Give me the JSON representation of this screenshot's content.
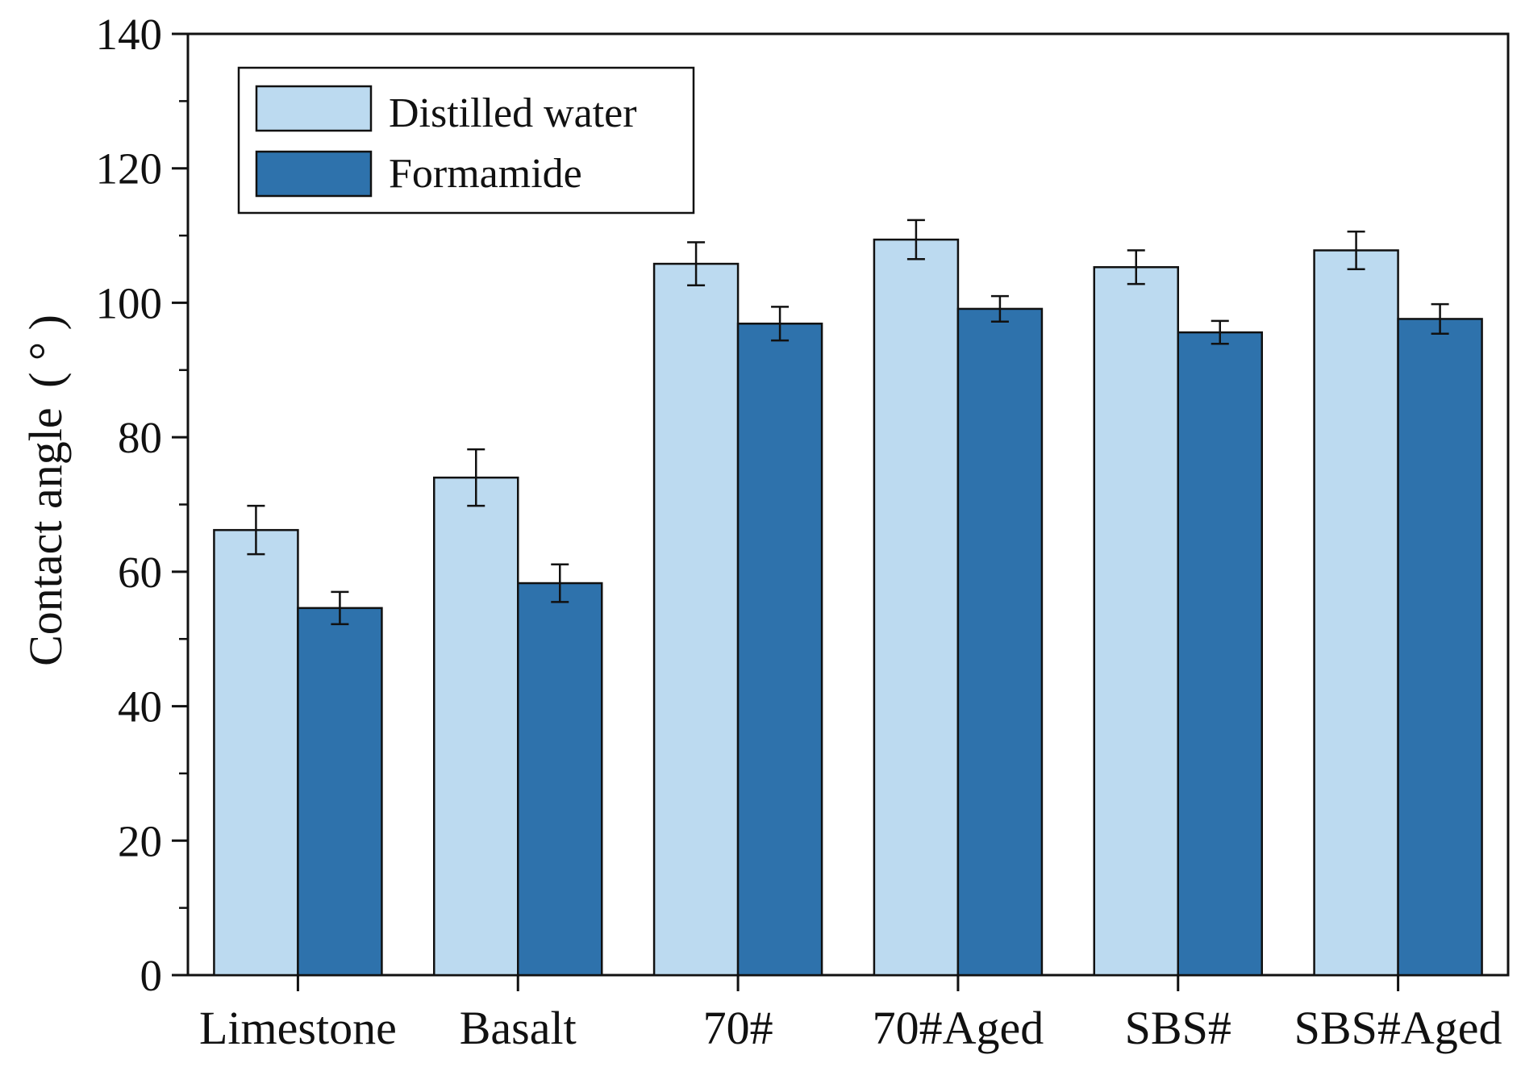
{
  "chart_data": {
    "type": "bar",
    "title": "",
    "xlabel": "",
    "ylabel": "Contact angle (°)",
    "ylabel_main": "Contact angle",
    "ylabel_unit": "( ° )",
    "ylim": [
      0,
      140
    ],
    "yticks": [
      "0",
      "20",
      "40",
      "60",
      "80",
      "100",
      "120",
      "140"
    ],
    "categories": [
      "Limestone",
      "Basalt",
      "70#",
      "70#Aged",
      "SBS#",
      "SBS#Aged"
    ],
    "legend_position": "top-left",
    "series": [
      {
        "name": "Distilled water",
        "color": "#bcdaf0",
        "values": [
          66.2,
          74.0,
          105.8,
          109.4,
          105.3,
          107.8
        ],
        "errors": [
          3.6,
          4.2,
          3.2,
          2.9,
          2.5,
          2.8
        ]
      },
      {
        "name": "Formamide",
        "color": "#2e72ac",
        "values": [
          54.6,
          58.3,
          96.9,
          99.1,
          95.6,
          97.6
        ],
        "errors": [
          2.4,
          2.8,
          2.5,
          1.9,
          1.7,
          2.2
        ]
      }
    ]
  }
}
